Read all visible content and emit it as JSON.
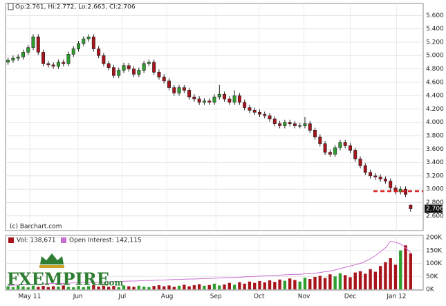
{
  "chart_data": {
    "type": "candlestick",
    "header": "Op:2.761, Hi:2.772, Lo:2.663, Cl:2.706",
    "source": "(c) Barchart.com",
    "last_price_label": "2.706",
    "resistance_line": 2.97,
    "up_color": "#2e9e2e",
    "down_color": "#a8141c",
    "line_color": "#c86ed0",
    "resistance_color": "#d42020",
    "xlim": [
      0,
      83
    ],
    "xticks": [
      {
        "value": 4.8,
        "label": "May 11"
      },
      {
        "value": 14.4,
        "label": "Jun"
      },
      {
        "value": 23.2,
        "label": "Jul"
      },
      {
        "value": 32.1,
        "label": "Aug"
      },
      {
        "value": 41.8,
        "label": "Sep"
      },
      {
        "value": 50.4,
        "label": "Oct"
      },
      {
        "value": 59.3,
        "label": "Nov"
      },
      {
        "value": 68.5,
        "label": "Dec"
      },
      {
        "value": 77.7,
        "label": "Jan 12"
      }
    ],
    "ylim": [
      2.38,
      5.78
    ],
    "yticks": [
      {
        "value": 2.6,
        "label": "2.600"
      },
      {
        "value": 2.8,
        "label": "2.800"
      },
      {
        "value": 3.0,
        "label": "3.000"
      },
      {
        "value": 3.2,
        "label": "3.200"
      },
      {
        "value": 3.4,
        "label": "3.400"
      },
      {
        "value": 3.6,
        "label": "3.600"
      },
      {
        "value": 3.8,
        "label": "3.800"
      },
      {
        "value": 4.0,
        "label": "4.000"
      },
      {
        "value": 4.2,
        "label": "4.200"
      },
      {
        "value": 4.4,
        "label": "4.400"
      },
      {
        "value": 4.6,
        "label": "4.600"
      },
      {
        "value": 4.8,
        "label": "4.800"
      },
      {
        "value": 5.0,
        "label": "5.000"
      },
      {
        "value": 5.2,
        "label": "5.200"
      },
      {
        "value": 5.4,
        "label": "5.400"
      },
      {
        "value": 5.6,
        "label": "5.600"
      }
    ],
    "open": [
      4.9,
      4.93,
      4.96,
      4.98,
      5.05,
      5.12,
      5.28,
      5.05,
      4.88,
      4.86,
      4.84,
      4.9,
      4.88,
      5.02,
      5.1,
      5.18,
      5.25,
      5.28,
      5.1,
      5.0,
      4.88,
      4.82,
      4.7,
      4.78,
      4.85,
      4.8,
      4.72,
      4.78,
      4.88,
      4.9,
      4.75,
      4.68,
      4.62,
      4.52,
      4.44,
      4.52,
      4.48,
      4.38,
      4.35,
      4.3,
      4.32,
      4.3,
      4.38,
      4.42,
      4.35,
      4.3,
      4.4,
      4.3,
      4.22,
      4.18,
      4.15,
      4.12,
      4.1,
      4.05,
      3.98,
      3.95,
      4.0,
      3.98,
      3.95,
      3.95,
      3.98,
      3.88,
      3.78,
      3.68,
      3.55,
      3.52,
      3.62,
      3.7,
      3.65,
      3.58,
      3.45,
      3.35,
      3.25,
      3.2,
      3.18,
      3.15,
      3.12,
      3.02,
      2.96,
      3.0,
      2.761
    ],
    "high": [
      4.97,
      5.0,
      5.02,
      5.09,
      5.16,
      5.32,
      5.32,
      5.09,
      4.92,
      4.9,
      4.94,
      4.94,
      5.06,
      5.14,
      5.22,
      5.29,
      5.32,
      5.32,
      5.14,
      5.04,
      4.92,
      4.86,
      4.82,
      4.89,
      4.89,
      4.84,
      4.82,
      4.92,
      4.94,
      4.94,
      4.79,
      4.72,
      4.66,
      4.56,
      4.56,
      4.56,
      4.52,
      4.42,
      4.39,
      4.36,
      4.36,
      4.42,
      4.56,
      4.46,
      4.39,
      4.48,
      4.44,
      4.34,
      4.26,
      4.22,
      4.19,
      4.16,
      4.14,
      4.09,
      4.02,
      4.04,
      4.04,
      4.02,
      3.99,
      4.08,
      4.02,
      3.92,
      3.82,
      3.72,
      3.59,
      3.66,
      3.74,
      3.74,
      3.69,
      3.62,
      3.49,
      3.39,
      3.29,
      3.24,
      3.22,
      3.19,
      3.16,
      3.06,
      3.04,
      3.04,
      2.772
    ],
    "low": [
      4.86,
      4.89,
      4.92,
      4.94,
      5.01,
      5.08,
      5.01,
      4.84,
      4.82,
      4.8,
      4.8,
      4.84,
      4.84,
      4.98,
      5.06,
      5.14,
      5.21,
      5.06,
      4.96,
      4.84,
      4.78,
      4.66,
      4.66,
      4.74,
      4.76,
      4.68,
      4.68,
      4.74,
      4.84,
      4.71,
      4.64,
      4.58,
      4.48,
      4.4,
      4.4,
      4.44,
      4.34,
      4.31,
      4.26,
      4.26,
      4.26,
      4.26,
      4.34,
      4.31,
      4.26,
      4.26,
      4.26,
      4.18,
      4.14,
      4.11,
      4.08,
      4.06,
      4.01,
      3.94,
      3.91,
      3.91,
      3.94,
      3.91,
      3.91,
      3.91,
      3.84,
      3.74,
      3.64,
      3.51,
      3.48,
      3.48,
      3.58,
      3.61,
      3.54,
      3.41,
      3.31,
      3.21,
      3.16,
      3.14,
      3.11,
      3.08,
      2.98,
      2.92,
      2.92,
      2.88,
      2.663
    ],
    "close": [
      4.93,
      4.96,
      4.98,
      5.05,
      5.12,
      5.28,
      5.05,
      4.88,
      4.86,
      4.84,
      4.9,
      4.88,
      5.02,
      5.1,
      5.18,
      5.25,
      5.28,
      5.1,
      5.0,
      4.88,
      4.82,
      4.7,
      4.78,
      4.85,
      4.8,
      4.72,
      4.78,
      4.88,
      4.9,
      4.75,
      4.68,
      4.62,
      4.52,
      4.44,
      4.52,
      4.48,
      4.38,
      4.35,
      4.3,
      4.32,
      4.3,
      4.38,
      4.42,
      4.35,
      4.3,
      4.4,
      4.3,
      4.22,
      4.18,
      4.15,
      4.12,
      4.1,
      4.05,
      3.98,
      3.95,
      4.0,
      3.98,
      3.95,
      3.95,
      3.98,
      3.88,
      3.78,
      3.68,
      3.55,
      3.52,
      3.62,
      3.7,
      3.65,
      3.58,
      3.45,
      3.35,
      3.25,
      3.2,
      3.18,
      3.15,
      3.12,
      3.02,
      2.96,
      3.0,
      2.92,
      2.706
    ],
    "volume_panel": {
      "volume_label": "Vol: 138,671",
      "open_interest_label": "Open Interest: 142,115",
      "ylim": [
        0,
        200000
      ],
      "yticks": [
        {
          "value": 0,
          "label": "0K"
        },
        {
          "value": 50000,
          "label": "50K"
        },
        {
          "value": 100000,
          "label": "100K"
        },
        {
          "value": 150000,
          "label": "150K"
        },
        {
          "value": 200000,
          "label": "200K"
        }
      ],
      "volume": [
        12000,
        9000,
        15000,
        11000,
        8000,
        14000,
        10000,
        13000,
        9000,
        12000,
        11000,
        15000,
        10000,
        8000,
        13000,
        9000,
        12000,
        16000,
        11000,
        14000,
        10000,
        13000,
        9000,
        15000,
        12000,
        10000,
        14000,
        11000,
        9000,
        13000,
        16000,
        12000,
        15000,
        10000,
        14000,
        18000,
        12000,
        16000,
        20000,
        14000,
        17000,
        22000,
        15000,
        19000,
        25000,
        18000,
        28000,
        22000,
        30000,
        25000,
        32000,
        27000,
        35000,
        29000,
        38000,
        33000,
        42000,
        36000,
        30000,
        45000,
        40000,
        48000,
        52000,
        44000,
        58000,
        50000,
        62000,
        55000,
        47000,
        65000,
        70000,
        60000,
        78000,
        68000,
        90000,
        105000,
        120000,
        95000,
        150000,
        170000,
        138671
      ],
      "open_interest": [
        15000,
        16000,
        17000,
        18000,
        19000,
        20000,
        20000,
        21000,
        22000,
        22000,
        23000,
        23000,
        24000,
        25000,
        25000,
        26000,
        26000,
        27000,
        28000,
        28000,
        29000,
        30000,
        30000,
        31000,
        32000,
        32000,
        33000,
        34000,
        34000,
        35000,
        36000,
        36000,
        37000,
        38000,
        38000,
        39000,
        40000,
        40000,
        41000,
        42000,
        42000,
        43000,
        44000,
        45000,
        45000,
        46000,
        47000,
        48000,
        49000,
        50000,
        51000,
        52000,
        53000,
        54000,
        55000,
        56000,
        57000,
        58000,
        58000,
        60000,
        60000,
        62000,
        65000,
        68000,
        70000,
        75000,
        80000,
        85000,
        90000,
        95000,
        100000,
        108000,
        118000,
        130000,
        145000,
        160000,
        185000,
        182000,
        175000,
        160000,
        142115
      ]
    },
    "logo": {
      "name": "FXEMPIRE",
      "suffix": ".com"
    }
  }
}
